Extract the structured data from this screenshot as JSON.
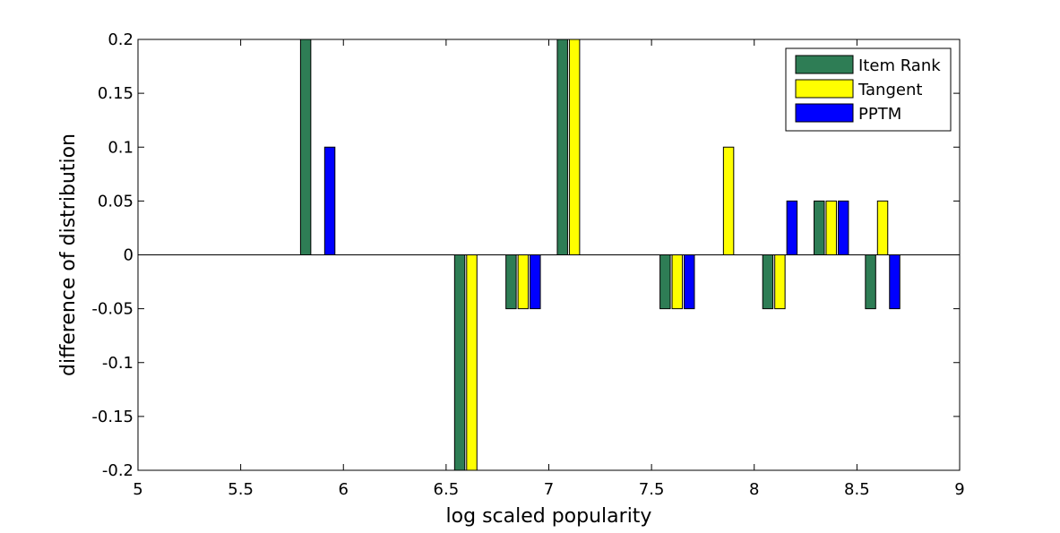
{
  "chart_data": {
    "type": "bar",
    "title": "",
    "xlabel": "log scaled popularity",
    "ylabel": "difference of distribution",
    "xlim": [
      5,
      9
    ],
    "ylim": [
      -0.2,
      0.2
    ],
    "xticks": [
      5,
      5.5,
      6,
      6.5,
      7,
      7.5,
      8,
      8.5,
      9
    ],
    "xtick_labels": [
      "5",
      "5.5",
      "6",
      "6.5",
      "7",
      "7.5",
      "8",
      "8.5",
      "9"
    ],
    "yticks": [
      -0.2,
      -0.15,
      -0.1,
      -0.05,
      0,
      0.05,
      0.1,
      0.15,
      0.2
    ],
    "ytick_labels": [
      "-0.2",
      "-0.15",
      "-0.1",
      "-0.05",
      "0",
      "0.05",
      "0.1",
      "0.15",
      "0.2"
    ],
    "grid": false,
    "legend_position": "top-right",
    "x": [
      5.875,
      6.625,
      6.875,
      7.125,
      7.625,
      7.875,
      8.125,
      8.375,
      8.625
    ],
    "bar_width": 0.05,
    "series": [
      {
        "name": "Item Rank",
        "color": "#2e7d55",
        "values": [
          0.2,
          -0.2,
          -0.05,
          0.2,
          -0.05,
          0,
          -0.05,
          0.05,
          -0.05
        ]
      },
      {
        "name": "Tangent",
        "color": "#ffff00",
        "values": [
          0,
          -0.2,
          -0.05,
          0.2,
          -0.05,
          0.1,
          -0.05,
          0.05,
          0.05
        ]
      },
      {
        "name": "PPTM",
        "color": "#0000ff",
        "values": [
          0.1,
          0,
          -0.05,
          0,
          -0.05,
          0,
          0.05,
          0.05,
          -0.05
        ]
      }
    ]
  }
}
